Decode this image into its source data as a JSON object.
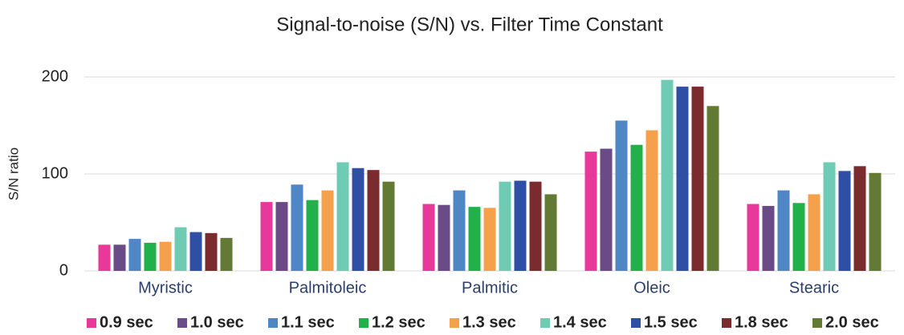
{
  "chart_data": {
    "type": "bar",
    "title": "Signal-to-noise (S/N) vs. Filter Time Constant",
    "y_label": "S/N ratio",
    "categories": [
      "Myristic",
      "Palmitoleic",
      "Palmitic",
      "Oleic",
      "Stearic"
    ],
    "series": [
      {
        "name": "0.9 sec",
        "color": "#e8399a",
        "values": [
          27,
          71,
          69,
          123,
          69
        ]
      },
      {
        "name": "1.0 sec",
        "color": "#6a4a87",
        "values": [
          27,
          71,
          68,
          126,
          67
        ]
      },
      {
        "name": "1.1 sec",
        "color": "#4f86c6",
        "values": [
          33,
          89,
          83,
          155,
          83
        ]
      },
      {
        "name": "1.2 sec",
        "color": "#22b04b",
        "values": [
          29,
          73,
          66,
          130,
          70
        ]
      },
      {
        "name": "1.3 sec",
        "color": "#f5a04a",
        "values": [
          30,
          83,
          65,
          145,
          79
        ]
      },
      {
        "name": "1.4 sec",
        "color": "#6fcbb3",
        "values": [
          45,
          112,
          92,
          197,
          112
        ]
      },
      {
        "name": "1.5 sec",
        "color": "#2e4fa3",
        "values": [
          40,
          106,
          93,
          190,
          103
        ]
      },
      {
        "name": "1.8 sec",
        "color": "#7b2a2e",
        "values": [
          39,
          104,
          92,
          190,
          108
        ]
      },
      {
        "name": "2.0 sec",
        "color": "#637a35",
        "values": [
          34,
          92,
          79,
          170,
          101
        ]
      }
    ],
    "ylim": [
      0,
      200
    ],
    "yticks": [
      0,
      100,
      200
    ],
    "grid": true,
    "legend": "bottom"
  }
}
